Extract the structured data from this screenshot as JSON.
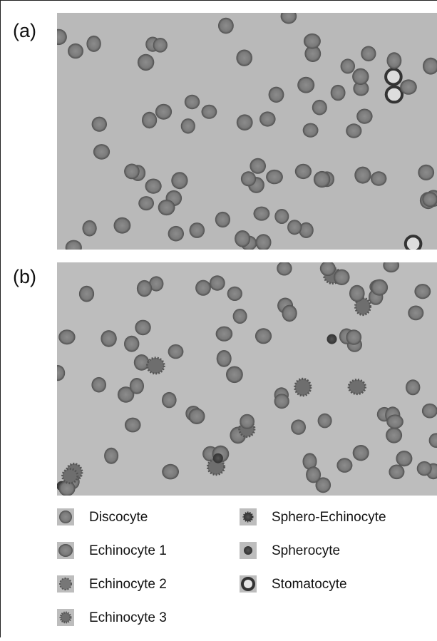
{
  "panels": [
    {
      "label": "(a)"
    },
    {
      "label": "(b)"
    }
  ],
  "legend": {
    "items": [
      "Discocyte",
      "Echinocyte 1",
      "Echinocyte 2",
      "Echinocyte 3",
      "Sphero-Echinocyte",
      "Spherocyte",
      "Stomatocyte"
    ]
  }
}
